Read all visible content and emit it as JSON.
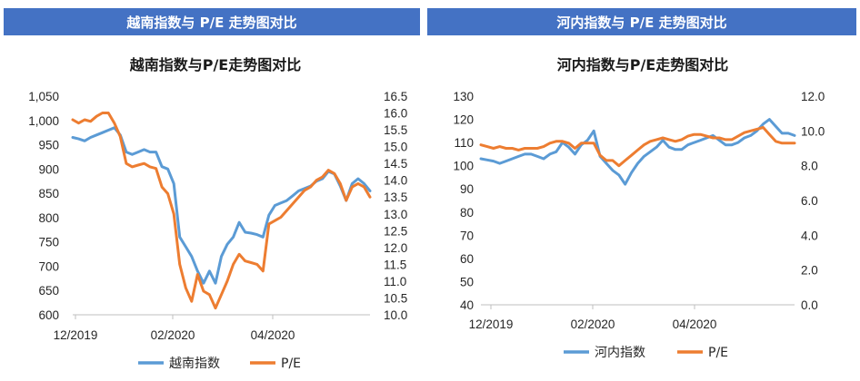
{
  "colors": {
    "banner": "#4472c4",
    "series_index": "#5b9bd5",
    "series_pe": "#ed7d31",
    "axis": "#bfbfbf"
  },
  "panels": [
    {
      "banner": "越南指数与 P/E 走势图对比"
    },
    {
      "banner": "河内指数与 P/E 走势图对比"
    }
  ],
  "chart_data": [
    {
      "type": "line",
      "title": "越南指数与P/E走势图对比",
      "x_ticks": [
        "12/2019",
        "02/2020",
        "04/2020"
      ],
      "y_left": {
        "lim": [
          600,
          1050
        ],
        "ticks": [
          "600",
          "650",
          "700",
          "750",
          "800",
          "850",
          "900",
          "950",
          "1,000",
          "1,050"
        ],
        "tick_values": [
          600,
          650,
          700,
          750,
          800,
          850,
          900,
          950,
          1000,
          1050
        ]
      },
      "y_right": {
        "lim": [
          10.0,
          16.5
        ],
        "ticks": [
          "10.0",
          "10.5",
          "11.0",
          "11.5",
          "12.0",
          "12.5",
          "13.0",
          "13.5",
          "14.0",
          "14.5",
          "15.0",
          "15.5",
          "16.0",
          "16.5"
        ],
        "tick_values": [
          10.0,
          10.5,
          11.0,
          11.5,
          12.0,
          12.5,
          13.0,
          13.5,
          14.0,
          14.5,
          15.0,
          15.5,
          16.0,
          16.5
        ]
      },
      "grid": false,
      "legend_position": "bottom",
      "series": [
        {
          "name": "越南指数",
          "axis": "left",
          "color": "#5b9bd5",
          "x": [
            0,
            2,
            4,
            6,
            8,
            10,
            12,
            14,
            16,
            18,
            20,
            22,
            24,
            26,
            28,
            30,
            32,
            34,
            36,
            38,
            40,
            42,
            44,
            46,
            48,
            50,
            52,
            54,
            56,
            58,
            60,
            62,
            64,
            66,
            68,
            70,
            72,
            74,
            76,
            78,
            80,
            82,
            84,
            86,
            88,
            90,
            92,
            94,
            96,
            98,
            100
          ],
          "values": [
            965,
            962,
            958,
            965,
            970,
            975,
            980,
            985,
            970,
            935,
            930,
            935,
            940,
            935,
            935,
            905,
            900,
            870,
            760,
            740,
            720,
            690,
            665,
            690,
            665,
            720,
            745,
            760,
            790,
            770,
            768,
            765,
            760,
            805,
            825,
            830,
            835,
            845,
            855,
            860,
            865,
            875,
            880,
            895,
            890,
            865,
            835,
            870,
            880,
            870,
            855
          ]
        },
        {
          "name": "P/E",
          "axis": "right",
          "color": "#ed7d31",
          "x": [
            0,
            2,
            4,
            6,
            8,
            10,
            12,
            14,
            16,
            18,
            20,
            22,
            24,
            26,
            28,
            30,
            32,
            34,
            36,
            38,
            40,
            42,
            44,
            46,
            48,
            50,
            52,
            54,
            56,
            58,
            60,
            62,
            64,
            66,
            68,
            70,
            72,
            74,
            76,
            78,
            80,
            82,
            84,
            86,
            88,
            90,
            92,
            94,
            96,
            98,
            100
          ],
          "values": [
            15.8,
            15.7,
            15.8,
            15.75,
            15.9,
            16.0,
            16.0,
            15.7,
            15.3,
            14.5,
            14.4,
            14.45,
            14.5,
            14.4,
            14.35,
            13.8,
            13.6,
            13.0,
            11.5,
            10.8,
            10.4,
            11.2,
            10.7,
            10.6,
            10.2,
            10.6,
            11.0,
            11.5,
            11.8,
            11.6,
            11.55,
            11.5,
            11.3,
            12.7,
            12.8,
            12.9,
            13.1,
            13.3,
            13.5,
            13.7,
            13.8,
            14.0,
            14.1,
            14.3,
            14.2,
            13.9,
            13.4,
            13.8,
            13.9,
            13.8,
            13.5
          ]
        }
      ]
    },
    {
      "type": "line",
      "title": "河内指数与P/E走势图对比",
      "x_ticks": [
        "12/2019",
        "02/2020",
        "04/2020"
      ],
      "y_left": {
        "lim": [
          40,
          130
        ],
        "ticks": [
          "40",
          "50",
          "60",
          "70",
          "80",
          "90",
          "100",
          "110",
          "120",
          "130"
        ],
        "tick_values": [
          40,
          50,
          60,
          70,
          80,
          90,
          100,
          110,
          120,
          130
        ]
      },
      "y_right": {
        "lim": [
          0.0,
          12.0
        ],
        "ticks": [
          "0.0",
          "2.0",
          "4.0",
          "6.0",
          "8.0",
          "10.0",
          "12.0"
        ],
        "tick_values": [
          0,
          2,
          4,
          6,
          8,
          10,
          12
        ]
      },
      "grid": false,
      "legend_position": "bottom",
      "series": [
        {
          "name": "河内指数",
          "axis": "left",
          "color": "#5b9bd5",
          "x": [
            0,
            2,
            4,
            6,
            8,
            10,
            12,
            14,
            16,
            18,
            20,
            22,
            24,
            26,
            28,
            30,
            32,
            34,
            36,
            38,
            40,
            42,
            44,
            46,
            48,
            50,
            52,
            54,
            56,
            58,
            60,
            62,
            64,
            66,
            68,
            70,
            72,
            74,
            76,
            78,
            80,
            82,
            84,
            86,
            88,
            90,
            92,
            94,
            96,
            98,
            100
          ],
          "values": [
            103,
            102.5,
            102,
            101,
            102,
            103,
            104,
            105,
            105,
            104,
            103,
            105,
            106,
            110,
            108,
            105,
            109,
            111,
            115,
            104,
            101,
            98,
            96,
            92,
            97,
            101,
            104,
            106,
            108,
            111,
            108,
            107,
            107,
            109,
            110,
            111,
            112,
            113,
            111,
            109,
            109,
            110,
            112,
            113,
            115,
            118,
            120,
            117,
            114,
            114,
            113
          ]
        },
        {
          "name": "P/E",
          "axis": "right",
          "color": "#ed7d31",
          "x": [
            0,
            2,
            4,
            6,
            8,
            10,
            12,
            14,
            16,
            18,
            20,
            22,
            24,
            26,
            28,
            30,
            32,
            34,
            36,
            38,
            40,
            42,
            44,
            46,
            48,
            50,
            52,
            54,
            56,
            58,
            60,
            62,
            64,
            66,
            68,
            70,
            72,
            74,
            76,
            78,
            80,
            82,
            84,
            86,
            88,
            90,
            92,
            94,
            96,
            98,
            100
          ],
          "values": [
            9.2,
            9.1,
            9.0,
            9.1,
            9.0,
            9.0,
            8.9,
            9.0,
            9.0,
            9.0,
            9.1,
            9.3,
            9.4,
            9.4,
            9.3,
            9.0,
            9.3,
            9.3,
            9.3,
            8.6,
            8.3,
            8.3,
            8.0,
            8.3,
            8.6,
            8.9,
            9.2,
            9.4,
            9.5,
            9.6,
            9.5,
            9.4,
            9.5,
            9.7,
            9.8,
            9.8,
            9.7,
            9.6,
            9.6,
            9.5,
            9.5,
            9.7,
            9.9,
            10.0,
            10.1,
            10.2,
            9.8,
            9.4,
            9.3,
            9.3,
            9.3
          ]
        }
      ]
    }
  ]
}
